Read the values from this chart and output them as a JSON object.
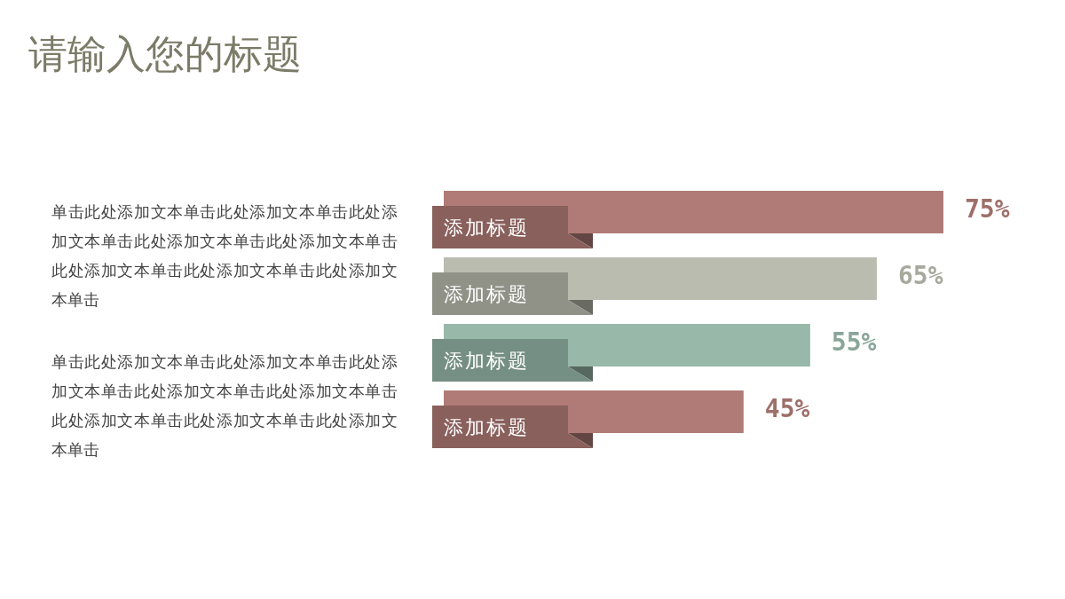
{
  "chart_data": {
    "type": "bar",
    "orientation": "horizontal",
    "title": "请输入您的标题",
    "categories": [
      "添加标题",
      "添加标题",
      "添加标题",
      "添加标题"
    ],
    "values": [
      75,
      65,
      55,
      45
    ],
    "colors": [
      "#b07b76",
      "#b9bcae",
      "#98b8aa",
      "#b07b76"
    ],
    "value_labels": [
      "75%",
      "65%",
      "55%",
      "45%"
    ],
    "annotations": [
      "单击此处添加文本单击此处添加文本单击此处添加文本单击此处添加文本单击此处添加文本单击此处添加文本单击此处添加文本单击此处添加文本单击",
      "单击此处添加文本单击此处添加文本单击此处添加文本单击此处添加文本单击此处添加文本单击此处添加文本单击此处添加文本单击此处添加文本单击"
    ]
  }
}
